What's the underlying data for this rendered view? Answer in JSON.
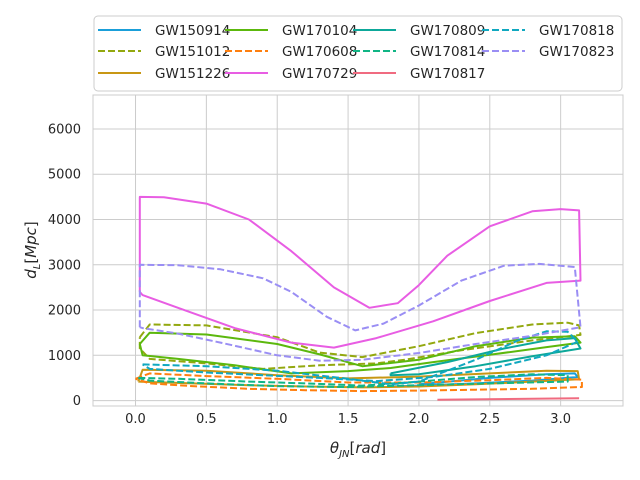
{
  "chart_data": {
    "type": "line",
    "xlabel": "θ_JN [rad]",
    "ylabel": "d_L [Mpc]",
    "xlim": [
      -0.3,
      3.44
    ],
    "ylim": [
      -120,
      6750
    ],
    "xticks": [
      0.0,
      0.5,
      1.0,
      1.5,
      2.0,
      2.5,
      3.0
    ],
    "yticks": [
      0,
      1000,
      2000,
      3000,
      4000,
      5000,
      6000
    ],
    "grid": true,
    "legend": "top, 4 columns",
    "series": [
      {
        "name": "GW150914",
        "color": "#1a9fd9",
        "dash": "solid",
        "points": [
          [
            2.0,
            360
          ],
          [
            2.5,
            500
          ],
          [
            2.9,
            580
          ],
          [
            3.1,
            600
          ],
          [
            3.12,
            520
          ],
          [
            2.8,
            440
          ],
          [
            2.4,
            380
          ],
          [
            2.0,
            330
          ],
          [
            1.8,
            310
          ]
        ]
      },
      {
        "name": "GW151012",
        "color": "#93a80f",
        "dash": "dashed",
        "points": [
          [
            0.03,
            1400
          ],
          [
            0.1,
            1680
          ],
          [
            0.5,
            1660
          ],
          [
            1.0,
            1400
          ],
          [
            1.3,
            1060
          ],
          [
            1.6,
            960
          ],
          [
            2.0,
            1200
          ],
          [
            2.4,
            1490
          ],
          [
            2.8,
            1680
          ],
          [
            3.05,
            1720
          ],
          [
            3.13,
            1660
          ],
          [
            3.14,
            1450
          ],
          [
            2.8,
            1330
          ],
          [
            2.3,
            1110
          ],
          [
            1.9,
            900
          ],
          [
            1.7,
            820
          ],
          [
            1.3,
            780
          ],
          [
            0.9,
            700
          ],
          [
            0.5,
            820
          ],
          [
            0.1,
            920
          ],
          [
            0.03,
            1150
          ],
          [
            0.03,
            1400
          ]
        ]
      },
      {
        "name": "GW151226",
        "color": "#c89714",
        "dash": "solid",
        "points": [
          [
            0.02,
            420
          ],
          [
            0.05,
            680
          ],
          [
            0.5,
            660
          ],
          [
            1.0,
            560
          ],
          [
            1.5,
            490
          ],
          [
            2.0,
            530
          ],
          [
            2.5,
            600
          ],
          [
            2.9,
            660
          ],
          [
            3.12,
            650
          ],
          [
            3.13,
            470
          ],
          [
            2.8,
            420
          ],
          [
            2.4,
            360
          ],
          [
            2.0,
            310
          ],
          [
            1.6,
            290
          ],
          [
            1.2,
            310
          ],
          [
            0.8,
            340
          ],
          [
            0.4,
            380
          ],
          [
            0.1,
            410
          ],
          [
            0.02,
            420
          ]
        ]
      },
      {
        "name": "GW170104",
        "color": "#5cb80d",
        "dash": "solid",
        "points": [
          [
            0.03,
            1250
          ],
          [
            0.1,
            1500
          ],
          [
            0.5,
            1460
          ],
          [
            1.0,
            1250
          ],
          [
            1.3,
            1020
          ],
          [
            1.6,
            760
          ],
          [
            2.0,
            900
          ],
          [
            2.4,
            1200
          ],
          [
            2.8,
            1390
          ],
          [
            3.1,
            1420
          ],
          [
            3.14,
            1280
          ],
          [
            2.9,
            1180
          ],
          [
            2.5,
            1010
          ],
          [
            2.1,
            850
          ],
          [
            1.8,
            720
          ],
          [
            1.5,
            650
          ],
          [
            1.1,
            600
          ],
          [
            0.7,
            780
          ],
          [
            0.3,
            920
          ],
          [
            0.05,
            1000
          ],
          [
            0.03,
            1250
          ]
        ]
      },
      {
        "name": "GW170608",
        "color": "#ff7f0e",
        "dash": "dashed",
        "points": [
          [
            0.0,
            480
          ],
          [
            0.1,
            600
          ],
          [
            0.5,
            540
          ],
          [
            1.0,
            480
          ],
          [
            1.5,
            400
          ],
          [
            2.0,
            400
          ],
          [
            2.5,
            450
          ],
          [
            2.9,
            500
          ],
          [
            3.15,
            460
          ],
          [
            3.15,
            300
          ],
          [
            2.8,
            260
          ],
          [
            2.4,
            240
          ],
          [
            2.0,
            220
          ],
          [
            1.6,
            210
          ],
          [
            1.2,
            230
          ],
          [
            0.8,
            260
          ],
          [
            0.4,
            320
          ],
          [
            0.1,
            380
          ],
          [
            0.0,
            480
          ]
        ]
      },
      {
        "name": "GW170729",
        "color": "#e85de3",
        "dash": "solid",
        "points": [
          [
            0.03,
            2400
          ],
          [
            0.03,
            4500
          ],
          [
            0.2,
            4490
          ],
          [
            0.5,
            4350
          ],
          [
            0.8,
            4000
          ],
          [
            1.1,
            3300
          ],
          [
            1.4,
            2500
          ],
          [
            1.65,
            2050
          ],
          [
            1.85,
            2150
          ],
          [
            2.0,
            2550
          ],
          [
            2.2,
            3200
          ],
          [
            2.5,
            3850
          ],
          [
            2.8,
            4180
          ],
          [
            3.0,
            4230
          ],
          [
            3.13,
            4200
          ],
          [
            3.14,
            2650
          ],
          [
            2.9,
            2600
          ],
          [
            2.5,
            2200
          ],
          [
            2.1,
            1750
          ],
          [
            1.7,
            1380
          ],
          [
            1.4,
            1170
          ],
          [
            1.1,
            1280
          ],
          [
            0.7,
            1600
          ],
          [
            0.3,
            2050
          ],
          [
            0.05,
            2330
          ],
          [
            0.03,
            2400
          ]
        ]
      },
      {
        "name": "GW170809",
        "color": "#0da89a",
        "dash": "solid",
        "points": [
          [
            1.8,
            600
          ],
          [
            2.2,
            850
          ],
          [
            2.6,
            1150
          ],
          [
            2.9,
            1330
          ],
          [
            3.1,
            1380
          ],
          [
            3.14,
            1150
          ],
          [
            2.8,
            980
          ],
          [
            2.4,
            760
          ],
          [
            2.0,
            580
          ],
          [
            1.8,
            560
          ],
          [
            1.8,
            600
          ]
        ]
      },
      {
        "name": "GW170814",
        "color": "#11b585",
        "dash": "dashed",
        "points": [
          [
            0.02,
            500
          ],
          [
            0.3,
            480
          ],
          [
            0.8,
            420
          ],
          [
            1.2,
            380
          ],
          [
            1.6,
            330
          ],
          [
            2.0,
            420
          ],
          [
            2.4,
            520
          ],
          [
            2.8,
            580
          ],
          [
            3.05,
            560
          ],
          [
            3.05,
            420
          ],
          [
            2.5,
            380
          ],
          [
            2.0,
            340
          ],
          [
            1.5,
            300
          ],
          [
            1.0,
            320
          ],
          [
            0.5,
            380
          ],
          [
            0.1,
            440
          ],
          [
            0.02,
            500
          ]
        ]
      },
      {
        "name": "GW170817",
        "color": "#f06b80",
        "dash": "solid",
        "points": [
          [
            2.13,
            20
          ],
          [
            3.13,
            50
          ]
        ]
      },
      {
        "name": "GW170818",
        "color": "#10a8c0",
        "dash": "dashed",
        "points": [
          [
            0.05,
            800
          ],
          [
            0.5,
            760
          ],
          [
            1.0,
            660
          ],
          [
            1.5,
            480
          ],
          [
            1.8,
            360
          ],
          [
            2.0,
            420
          ],
          [
            2.4,
            900
          ],
          [
            2.7,
            1330
          ],
          [
            2.9,
            1530
          ],
          [
            3.05,
            1520
          ],
          [
            3.12,
            1300
          ],
          [
            2.9,
            1000
          ],
          [
            2.5,
            700
          ],
          [
            2.1,
            520
          ],
          [
            1.7,
            430
          ],
          [
            1.3,
            500
          ],
          [
            0.9,
            560
          ],
          [
            0.5,
            620
          ],
          [
            0.1,
            700
          ],
          [
            0.05,
            800
          ]
        ]
      },
      {
        "name": "GW170823",
        "color": "#9a8ef4",
        "dash": "dashed",
        "points": [
          [
            0.03,
            1620
          ],
          [
            0.03,
            3000
          ],
          [
            0.3,
            2990
          ],
          [
            0.6,
            2900
          ],
          [
            0.9,
            2700
          ],
          [
            1.1,
            2400
          ],
          [
            1.35,
            1850
          ],
          [
            1.55,
            1550
          ],
          [
            1.75,
            1700
          ],
          [
            2.0,
            2100
          ],
          [
            2.3,
            2650
          ],
          [
            2.6,
            2980
          ],
          [
            2.85,
            3020
          ],
          [
            3.1,
            2950
          ],
          [
            3.14,
            1620
          ],
          [
            2.8,
            1430
          ],
          [
            2.4,
            1250
          ],
          [
            2.0,
            1050
          ],
          [
            1.6,
            900
          ],
          [
            1.3,
            880
          ],
          [
            1.0,
            1000
          ],
          [
            0.6,
            1280
          ],
          [
            0.3,
            1480
          ],
          [
            0.05,
            1600
          ],
          [
            0.03,
            1620
          ]
        ]
      }
    ]
  }
}
